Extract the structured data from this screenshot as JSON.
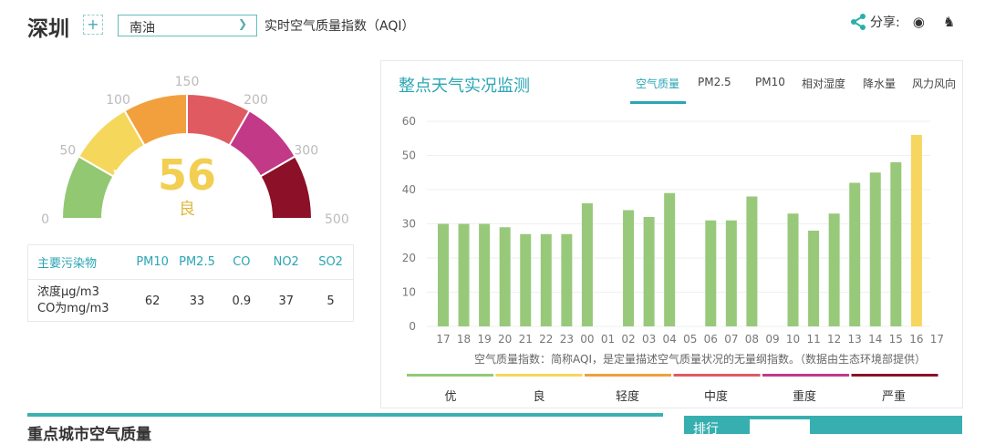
{
  "header": {
    "city": "深圳",
    "add_label": "+",
    "station": "南油",
    "aqi_title": "实时空气质量指数（AQI）",
    "share_label": "分享:"
  },
  "gauge": {
    "value": 56,
    "level": "良",
    "ticks": [
      "0",
      "50",
      "100",
      "150",
      "200",
      "300",
      "500"
    ],
    "colors": [
      "#93c873",
      "#f5d75c",
      "#f1a03d",
      "#e05b61",
      "#c23987",
      "#8c1027"
    ]
  },
  "pollutants": {
    "header": "主要污染物",
    "unit_line1": "浓度μg/m3",
    "unit_line2": "CO为mg/m3",
    "names": [
      "PM10",
      "PM2.5",
      "CO",
      "NO2",
      "SO2"
    ],
    "values": [
      "62",
      "33",
      "0.9",
      "37",
      "5"
    ]
  },
  "panel": {
    "title": "整点天气实况监测",
    "tabs": [
      "空气质量",
      "PM2.5",
      "PM10",
      "相对湿度",
      "降水量",
      "风力风向"
    ],
    "active_tab": 0,
    "note": "空气质量指数：简称AQI，是定量描述空气质量状况的无量纲指数。（数据由生态环境部提供）",
    "levels": [
      "优",
      "良",
      "轻度",
      "中度",
      "重度",
      "严重"
    ]
  },
  "chart_data": {
    "type": "bar",
    "x_unit": "(h)",
    "categories": [
      "17",
      "18",
      "19",
      "20",
      "21",
      "22",
      "23",
      "00",
      "01",
      "02",
      "03",
      "04",
      "05",
      "06",
      "07",
      "08",
      "09",
      "10",
      "11",
      "12",
      "13",
      "14",
      "15",
      "16",
      "17"
    ],
    "values": [
      30,
      30,
      30,
      29,
      27,
      27,
      27,
      36,
      null,
      34,
      32,
      39,
      null,
      31,
      31,
      38,
      null,
      33,
      28,
      33,
      42,
      45,
      48,
      56,
      null
    ],
    "ylim": [
      0,
      60
    ],
    "yticks": [
      0,
      10,
      20,
      30,
      40,
      50,
      60
    ],
    "grid": true,
    "colors": {
      "good": "#98c97a",
      "moderate": "#f7d65f"
    }
  },
  "bottom": {
    "title": "重点城市空气质量",
    "rank_label": "排行"
  }
}
